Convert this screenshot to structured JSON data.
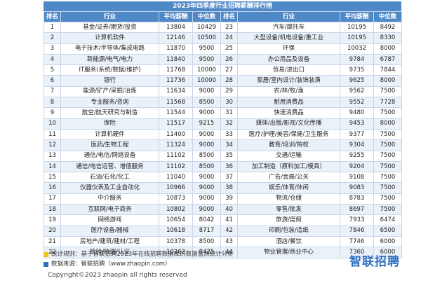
{
  "title": "2023年四季度行业招聘薪酬排行榜",
  "headers": {
    "rank": "排名",
    "industry": "行业",
    "avg_salary": "平均薪酬",
    "median": "中位数"
  },
  "left_rows": [
    [
      "1",
      "基金/证券/期货/投资",
      "13804",
      "10429"
    ],
    [
      "2",
      "计算机软件",
      "12146",
      "10500"
    ],
    [
      "3",
      "电子技术/半导体/集成电路",
      "11870",
      "9500"
    ],
    [
      "4",
      "新能源/电气/电力",
      "11840",
      "9500"
    ],
    [
      "5",
      "IT服务(系统/数据/维护)",
      "11768",
      "10000"
    ],
    [
      "6",
      "银行",
      "11736",
      "10000"
    ],
    [
      "7",
      "能源/矿产/采掘/冶炼",
      "11634",
      "9000"
    ],
    [
      "8",
      "专业服务/咨询",
      "11568",
      "8500"
    ],
    [
      "9",
      "航空/航天研究与制造",
      "11544",
      "9000"
    ],
    [
      "10",
      "保险",
      "11517",
      "9215"
    ],
    [
      "11",
      "计算机硬件",
      "11400",
      "9000"
    ],
    [
      "12",
      "医药/生物工程",
      "11324",
      "9000"
    ],
    [
      "13",
      "通信/电信/网络设备",
      "11102",
      "8500"
    ],
    [
      "14",
      "通信/电信运营、增值服务",
      "11102",
      "8500"
    ],
    [
      "15",
      "石油/石化/化工",
      "11040",
      "9000"
    ],
    [
      "16",
      "仪器仪表及工业自动化",
      "10966",
      "9000"
    ],
    [
      "17",
      "中介服务",
      "10873",
      "9000"
    ],
    [
      "18",
      "互联网/电子商务",
      "10802",
      "9000"
    ],
    [
      "19",
      "网络游戏",
      "10654",
      "8042"
    ],
    [
      "20",
      "医疗设备/器械",
      "10618",
      "8717"
    ],
    [
      "21",
      "房地产/建筑/建材/工程",
      "10378",
      "8500"
    ],
    [
      "22",
      "检验/检测/认证",
      "10262",
      "8425"
    ]
  ],
  "right_rows": [
    [
      "23",
      "汽车/摩托车",
      "10195",
      "8492"
    ],
    [
      "24",
      "大型设备/机电设备/重工业",
      "10195",
      "8330"
    ],
    [
      "25",
      "环保",
      "10032",
      "8000"
    ],
    [
      "26",
      "办公用品及设备",
      "9784",
      "6787"
    ],
    [
      "27",
      "贸易/进出口",
      "9735",
      "7844"
    ],
    [
      "28",
      "家居/室内设计/装饰装潢",
      "9625",
      "8000"
    ],
    [
      "29",
      "农/林/牧/渔",
      "9562",
      "7500"
    ],
    [
      "30",
      "耐用消费品",
      "9552",
      "7728"
    ],
    [
      "31",
      "快速消费品",
      "9480",
      "7500"
    ],
    [
      "32",
      "媒体/出版/影视/文化传播",
      "9453",
      "8000"
    ],
    [
      "33",
      "医疗/护理/美容/保健/卫生服务",
      "9377",
      "7500"
    ],
    [
      "34",
      "教育/培训/院校",
      "9304",
      "7500"
    ],
    [
      "35",
      "交通/运输",
      "9255",
      "7500"
    ],
    [
      "36",
      "加工制造（原料加工/模具）",
      "9204",
      "7500"
    ],
    [
      "37",
      "广告/会展/公关",
      "9108",
      "7500"
    ],
    [
      "38",
      "娱乐/体育/休闲",
      "9083",
      "7500"
    ],
    [
      "39",
      "物流/仓储",
      "8783",
      "7500"
    ],
    [
      "40",
      "零售/批发",
      "8697",
      "7500"
    ],
    [
      "41",
      "旅游/度假",
      "7933",
      "6474"
    ],
    [
      "42",
      "印刷/包装/造纸",
      "7846",
      "6500"
    ],
    [
      "43",
      "酒店/餐饮",
      "7746",
      "6000"
    ],
    [
      "44",
      "物业管理/商业中心",
      "7360",
      "6000"
    ]
  ],
  "footer": {
    "stat_rule": "统计规则：基于智联招聘2023年在线招聘数据库的数据监测统计分析",
    "source": "数据来源：智联招聘（www.zhaopin.com）",
    "logo": "智联招聘",
    "copyright": "Copyright©2023 zhaopin all rights reserved"
  },
  "colors": {
    "header_bg": "#4e88c7",
    "stripe": "#eaf1f9",
    "bullet_rule": "#f1c21b",
    "bullet_source": "#2f6fc0",
    "logo": "#2f6fc0"
  }
}
